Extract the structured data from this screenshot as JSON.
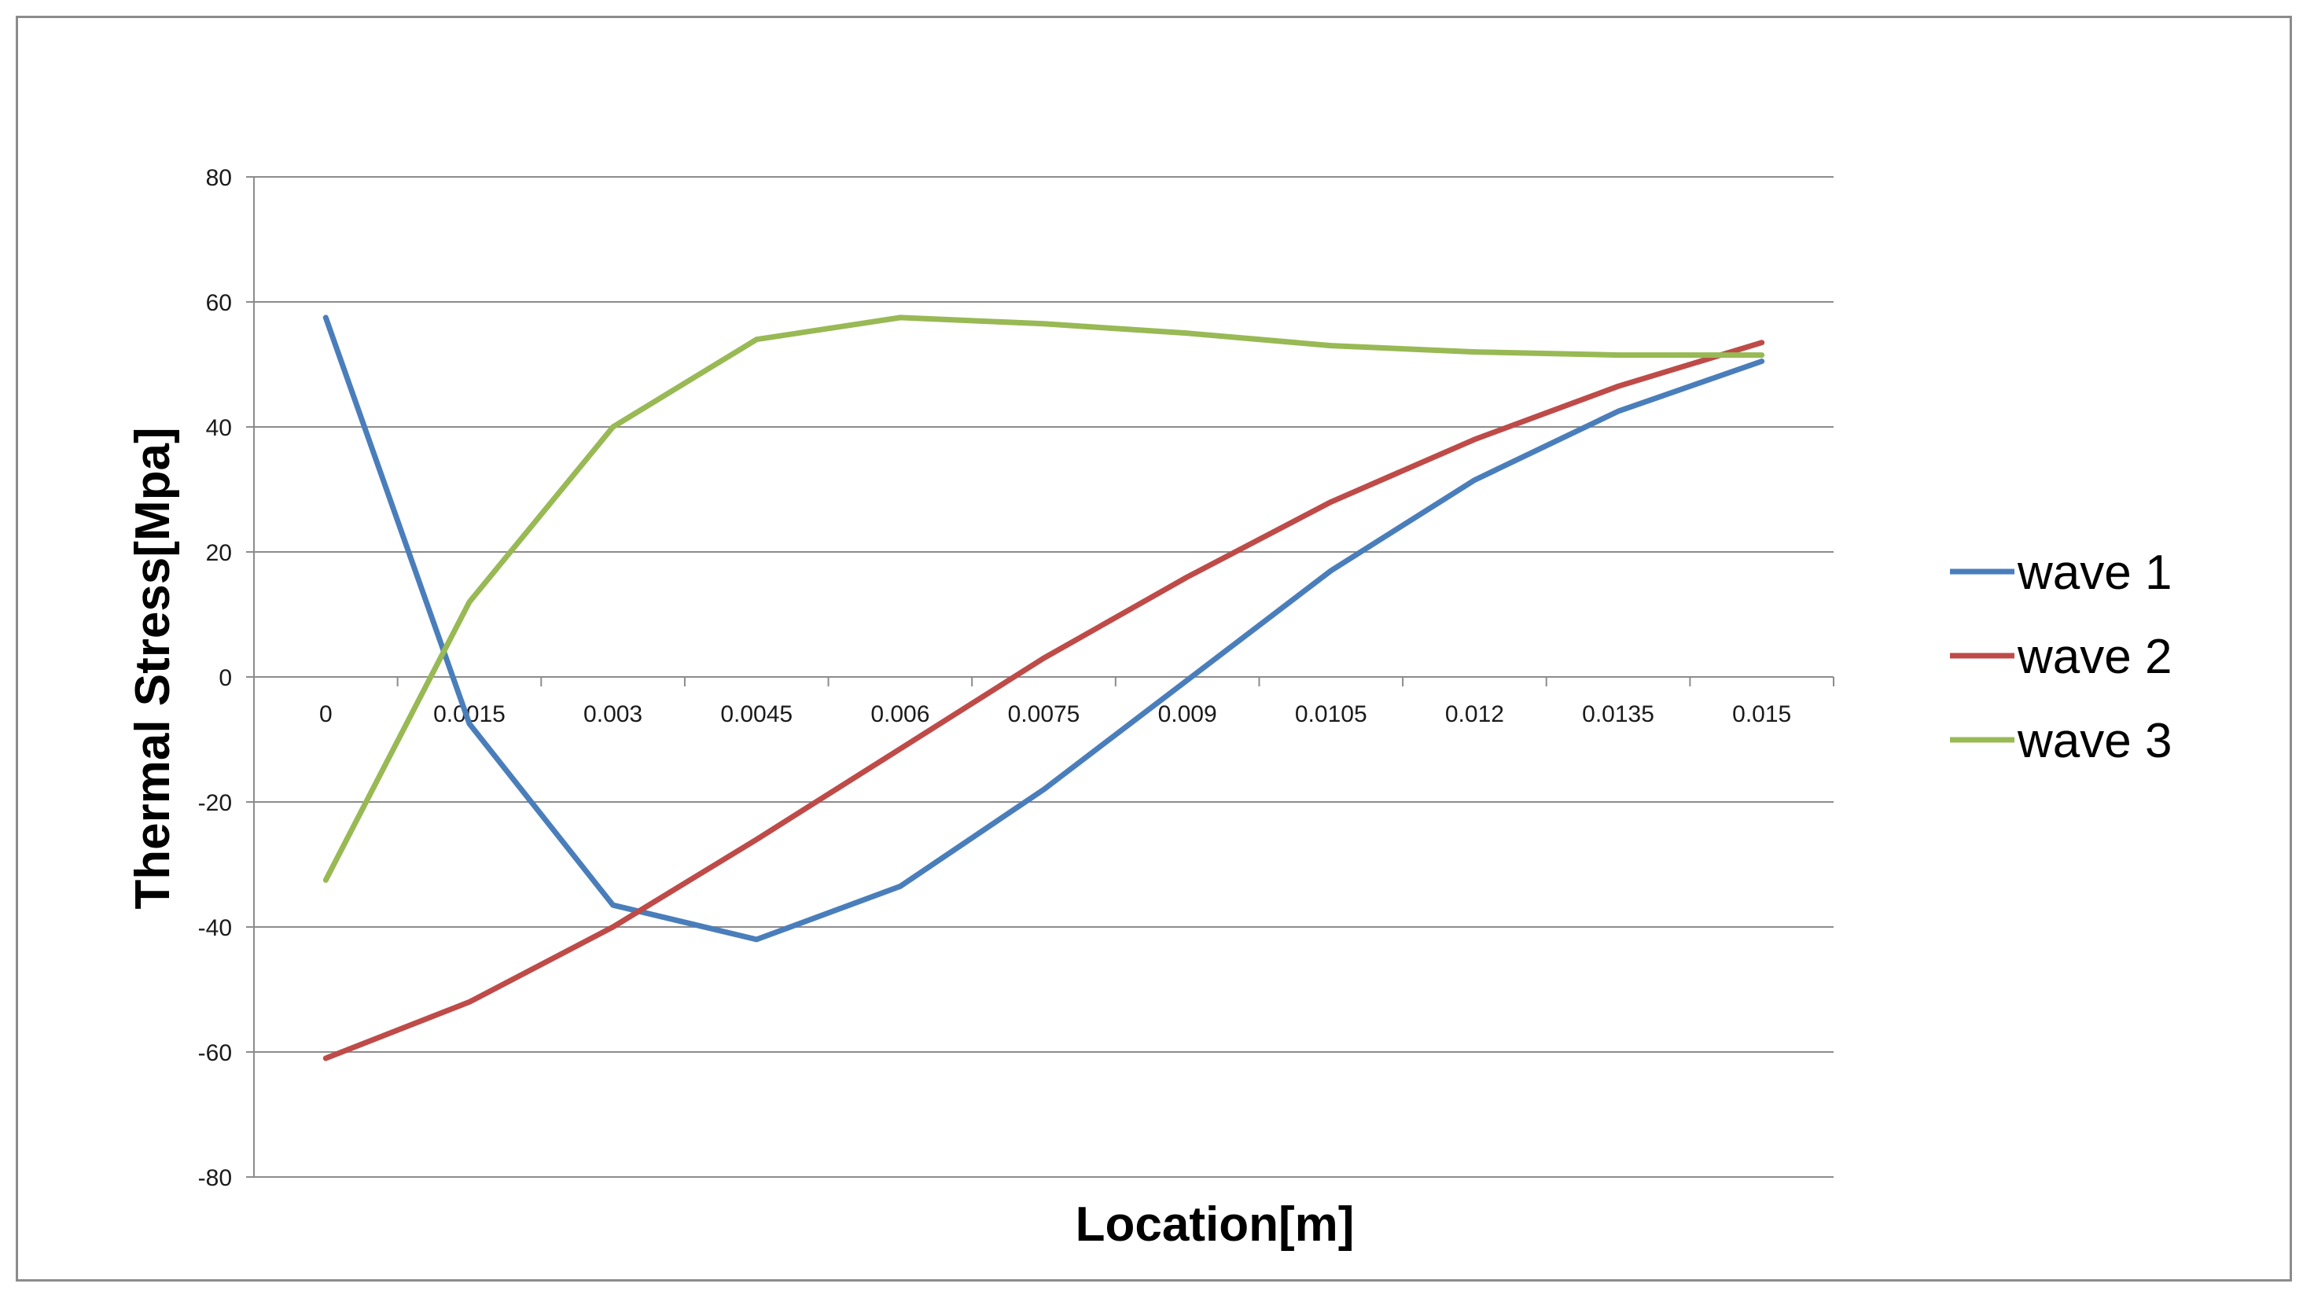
{
  "chart_data": {
    "type": "line",
    "xlabel": "Location[m]",
    "ylabel": "Thermal Stress[Mpa]",
    "ylim": [
      -80,
      80
    ],
    "yticks": [
      "80",
      "60",
      "40",
      "20",
      "0",
      "-20",
      "-40",
      "-60",
      "-80"
    ],
    "categories": [
      "0",
      "0.0015",
      "0.003",
      "0.0045",
      "0.006",
      "0.0075",
      "0.009",
      "0.0105",
      "0.012",
      "0.0135",
      "0.015"
    ],
    "grid": "horizontal",
    "legend_position": "right",
    "series": [
      {
        "name": "wave 1",
        "color": "#4a7ebb",
        "values": [
          57.5,
          -7.5,
          -36.5,
          -42.0,
          -33.5,
          -18.0,
          -0.5,
          17.0,
          31.5,
          42.5,
          50.5
        ]
      },
      {
        "name": "wave 2",
        "color": "#be4b48",
        "values": [
          -61.0,
          -52.0,
          -40.0,
          -26.0,
          -11.5,
          3.0,
          16.0,
          28.0,
          38.0,
          46.5,
          53.5
        ]
      },
      {
        "name": "wave 3",
        "color": "#98b954",
        "values": [
          -32.5,
          12.0,
          40.0,
          54.0,
          57.5,
          56.5,
          55.0,
          53.0,
          52.0,
          51.5,
          51.5
        ]
      }
    ]
  }
}
